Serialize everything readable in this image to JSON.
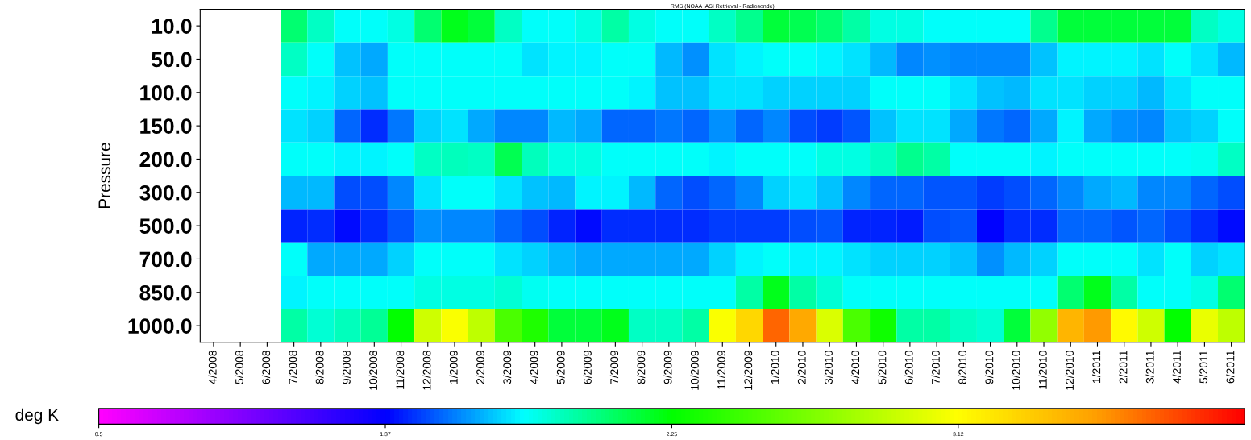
{
  "chart_data": {
    "type": "heatmap",
    "title": "RMS (NOAA IASI Retrieval - Radiosonde)",
    "ylabel": "Pressure",
    "clabel": "deg K",
    "categories": [
      "4/2008",
      "5/2008",
      "6/2008",
      "7/2008",
      "8/2008",
      "9/2008",
      "10/2008",
      "11/2008",
      "12/2008",
      "1/2009",
      "2/2009",
      "3/2009",
      "4/2009",
      "5/2009",
      "6/2009",
      "7/2009",
      "8/2009",
      "9/2009",
      "10/2009",
      "11/2009",
      "12/2009",
      "1/2010",
      "2/2010",
      "3/2010",
      "4/2010",
      "5/2010",
      "6/2010",
      "7/2010",
      "8/2010",
      "9/2010",
      "10/2010",
      "11/2010",
      "12/2010",
      "1/2011",
      "2/2011",
      "3/2011",
      "4/2011",
      "5/2011",
      "6/2011"
    ],
    "y_categories": [
      "10.0",
      "50.0",
      "100.0",
      "150.0",
      "200.0",
      "300.0",
      "500.0",
      "700.0",
      "850.0",
      "1000.0"
    ],
    "cells": [
      [
        null,
        null,
        null,
        2.05,
        1.9,
        1.8,
        1.8,
        1.85,
        2.05,
        2.2,
        2.15,
        1.9,
        1.8,
        1.8,
        1.85,
        1.95,
        1.85,
        1.8,
        1.8,
        1.9,
        2.0,
        2.15,
        2.1,
        2.05,
        1.95,
        1.85,
        1.85,
        1.8,
        1.8,
        1.8,
        1.8,
        2.0,
        2.15,
        2.15,
        2.15,
        2.15,
        2.15,
        1.9,
        1.85
      ],
      [
        null,
        null,
        null,
        1.9,
        1.8,
        1.7,
        1.65,
        1.8,
        1.8,
        1.8,
        1.8,
        1.8,
        1.75,
        1.78,
        1.78,
        1.8,
        1.8,
        1.68,
        1.62,
        1.75,
        1.78,
        1.8,
        1.8,
        1.78,
        1.75,
        1.68,
        1.6,
        1.62,
        1.6,
        1.6,
        1.6,
        1.7,
        1.78,
        1.78,
        1.78,
        1.75,
        1.8,
        1.75,
        1.68
      ],
      [
        null,
        null,
        null,
        1.8,
        1.78,
        1.72,
        1.7,
        1.8,
        1.8,
        1.8,
        1.8,
        1.8,
        1.8,
        1.8,
        1.8,
        1.8,
        1.78,
        1.7,
        1.7,
        1.75,
        1.75,
        1.72,
        1.72,
        1.72,
        1.72,
        1.8,
        1.8,
        1.8,
        1.75,
        1.7,
        1.68,
        1.75,
        1.75,
        1.72,
        1.72,
        1.68,
        1.75,
        1.8,
        1.8
      ],
      [
        null,
        null,
        null,
        1.75,
        1.72,
        1.55,
        1.45,
        1.58,
        1.72,
        1.75,
        1.65,
        1.6,
        1.6,
        1.68,
        1.65,
        1.55,
        1.55,
        1.58,
        1.55,
        1.62,
        1.55,
        1.6,
        1.5,
        1.48,
        1.52,
        1.7,
        1.75,
        1.75,
        1.65,
        1.58,
        1.55,
        1.65,
        1.78,
        1.65,
        1.62,
        1.6,
        1.7,
        1.72,
        1.8
      ],
      [
        null,
        null,
        null,
        1.8,
        1.8,
        1.78,
        1.78,
        1.8,
        1.9,
        1.92,
        1.9,
        2.1,
        1.92,
        1.85,
        1.85,
        1.8,
        1.8,
        1.8,
        1.8,
        1.78,
        1.8,
        1.8,
        1.8,
        1.85,
        1.85,
        1.9,
        2.0,
        1.95,
        1.8,
        1.8,
        1.8,
        1.78,
        1.8,
        1.8,
        1.8,
        1.8,
        1.8,
        1.82,
        1.9
      ],
      [
        null,
        null,
        null,
        1.68,
        1.68,
        1.5,
        1.5,
        1.6,
        1.75,
        1.8,
        1.8,
        1.75,
        1.7,
        1.68,
        1.78,
        1.78,
        1.68,
        1.55,
        1.5,
        1.55,
        1.6,
        1.72,
        1.75,
        1.7,
        1.6,
        1.55,
        1.55,
        1.52,
        1.52,
        1.48,
        1.5,
        1.55,
        1.6,
        1.65,
        1.68,
        1.6,
        1.6,
        1.55,
        1.5
      ],
      [
        null,
        null,
        null,
        1.43,
        1.45,
        1.4,
        1.45,
        1.52,
        1.62,
        1.6,
        1.6,
        1.55,
        1.5,
        1.43,
        1.4,
        1.45,
        1.45,
        1.45,
        1.45,
        1.48,
        1.48,
        1.48,
        1.5,
        1.52,
        1.43,
        1.43,
        1.42,
        1.5,
        1.52,
        1.38,
        1.45,
        1.45,
        1.55,
        1.55,
        1.52,
        1.55,
        1.5,
        1.45,
        1.4
      ],
      [
        null,
        null,
        null,
        1.8,
        1.65,
        1.65,
        1.65,
        1.72,
        1.8,
        1.8,
        1.8,
        1.75,
        1.72,
        1.68,
        1.65,
        1.65,
        1.65,
        1.65,
        1.65,
        1.72,
        1.78,
        1.8,
        1.78,
        1.78,
        1.75,
        1.72,
        1.72,
        1.72,
        1.7,
        1.62,
        1.68,
        1.72,
        1.8,
        1.8,
        1.8,
        1.75,
        1.8,
        1.72,
        1.75
      ],
      [
        null,
        null,
        null,
        1.78,
        1.8,
        1.8,
        1.8,
        1.8,
        1.85,
        1.85,
        1.85,
        1.88,
        1.82,
        1.8,
        1.8,
        1.8,
        1.8,
        1.8,
        1.8,
        1.8,
        1.95,
        2.2,
        1.95,
        1.88,
        1.8,
        1.8,
        1.8,
        1.8,
        1.8,
        1.8,
        1.8,
        1.8,
        2.05,
        2.2,
        1.95,
        1.8,
        1.8,
        1.85,
        2.05
      ],
      [
        null,
        null,
        null,
        1.95,
        1.88,
        1.92,
        1.98,
        2.25,
        2.95,
        3.1,
        2.9,
        2.5,
        2.35,
        2.15,
        2.15,
        2.2,
        1.9,
        1.9,
        1.95,
        3.1,
        3.3,
        3.7,
        3.5,
        3.0,
        2.5,
        2.3,
        1.95,
        1.95,
        1.9,
        1.88,
        2.15,
        2.75,
        3.45,
        3.55,
        3.15,
        2.95,
        2.25,
        3.05,
        2.9
      ]
    ],
    "clim": [
      0.5,
      4.0
    ],
    "cticks": [
      {
        "value": 0.5,
        "label": "0.5"
      },
      {
        "value": 1.375,
        "label": "1.37"
      },
      {
        "value": 2.25,
        "label": "2.25"
      },
      {
        "value": 3.125,
        "label": "3.12"
      }
    ]
  }
}
